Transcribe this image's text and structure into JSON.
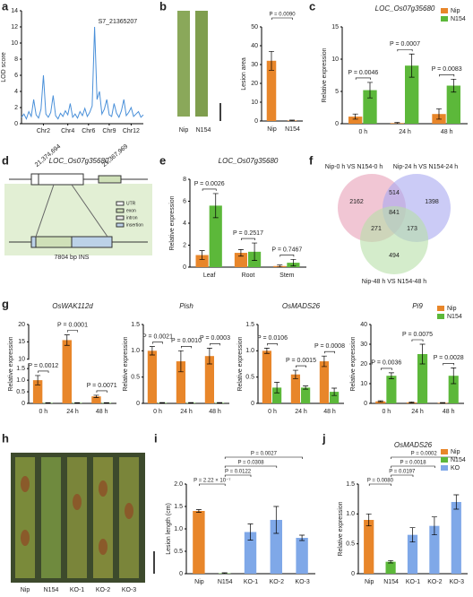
{
  "panels": [
    "a",
    "b",
    "c",
    "d",
    "e",
    "f",
    "g",
    "h",
    "i",
    "j"
  ],
  "photo_b_labels": [
    "Nip",
    "N154"
  ],
  "photo_h_labels": [
    "Nip",
    "N154",
    "KO-1",
    "KO-2",
    "KO-3"
  ],
  "gene_diagram": {
    "title": "LOC_Os07g35680",
    "start": "21,374,694",
    "end": "21,367,969",
    "insertion": "7804 bp INS",
    "legend": [
      "UTR",
      "exon",
      "intron",
      "insertion"
    ]
  },
  "venn": {
    "sets": [
      "Nip-0 h VS N154-0 h",
      "Nip-24 h VS N154-24 h",
      "Nip-48 h VS N154-48 h"
    ],
    "only_a": "2162",
    "ab": "514",
    "only_b": "1398",
    "abc": "841",
    "ac": "271",
    "bc": "173",
    "only_c": "494"
  },
  "chart_data": [
    {
      "type": "line",
      "ylabel": "LOD score",
      "peak_label": "S7_21365207",
      "color": "#4a90d9",
      "x": [
        0,
        2,
        4,
        6,
        8,
        10,
        12,
        14,
        16,
        18,
        20,
        22,
        24,
        26,
        28,
        30,
        32,
        34,
        36,
        38,
        40,
        42,
        44,
        46,
        48,
        50,
        52,
        54,
        56,
        58,
        60,
        62,
        64,
        66,
        68,
        70,
        72,
        74,
        76,
        78,
        80,
        82,
        84,
        86,
        88,
        90,
        92,
        94,
        96,
        98,
        100
      ],
      "values": [
        0.8,
        1.2,
        0.6,
        1.5,
        0.9,
        3.0,
        1.1,
        0.7,
        1.8,
        6.0,
        1.2,
        0.8,
        1.4,
        3.5,
        1.0,
        0.6,
        1.3,
        0.9,
        1.6,
        1.1,
        2.5,
        0.8,
        1.2,
        0.7,
        1.5,
        1.0,
        1.9,
        0.9,
        1.4,
        2.2,
        12.0,
        3.0,
        4.0,
        1.2,
        1.8,
        3.0,
        1.1,
        0.9,
        2.5,
        1.3,
        0.8,
        1.6,
        3.0,
        1.0,
        1.4,
        2.0,
        0.9,
        1.2,
        1.5,
        0.8,
        1.1
      ],
      "xlim": [
        0,
        100
      ],
      "xticks": [
        {
          "value": 18,
          "label": "Chr2"
        },
        {
          "value": 38,
          "label": "Chr4"
        },
        {
          "value": 55,
          "label": "Chr6"
        },
        {
          "value": 72,
          "label": "Chr9"
        },
        {
          "value": 90,
          "label": "Chr12"
        }
      ],
      "ylim": [
        0,
        14
      ],
      "yticks": [
        0,
        2,
        4,
        6,
        8,
        10,
        12,
        14
      ]
    },
    {
      "type": "bar",
      "ylabel": "Lesion area",
      "categories": [
        "Nip",
        "N154"
      ],
      "series": [
        {
          "color": "#e8862a",
          "values": [
            32,
            0.3
          ],
          "errors": [
            5,
            0.2
          ]
        }
      ],
      "ylim": [
        0,
        50
      ],
      "yticks": [
        0,
        10,
        20,
        30,
        40,
        50
      ],
      "comparisons": [
        {
          "label": "P = 0.0090",
          "between": [
            0,
            1
          ]
        }
      ]
    },
    {
      "type": "bar",
      "title": "LOC_Os07g35680",
      "ylabel": "Relative expression",
      "categories": [
        "0 h",
        "24 h",
        "48 h"
      ],
      "series": [
        {
          "name": "Nip",
          "color": "#e8862a",
          "values": [
            1.1,
            0.1,
            1.5
          ],
          "errors": [
            0.4,
            0.1,
            0.8
          ]
        },
        {
          "name": "N154",
          "color": "#5cb83a",
          "values": [
            5.2,
            9.0,
            5.9
          ],
          "errors": [
            1.2,
            1.8,
            1.0
          ]
        }
      ],
      "ylim": [
        0,
        15
      ],
      "yticks": [
        0,
        5,
        10,
        15
      ],
      "legend": "upper right",
      "annotations": [
        "P = 0.0046",
        "P = 0.0007",
        "P = 0.0083"
      ]
    },
    {
      "type": "bar",
      "title": "LOC_Os07g35680",
      "ylabel": "Relative expression",
      "categories": [
        "Leaf",
        "Root",
        "Stem"
      ],
      "series": [
        {
          "name": "Nip",
          "color": "#e8862a",
          "values": [
            1.1,
            1.3,
            0.1
          ],
          "errors": [
            0.4,
            0.3,
            0.1
          ]
        },
        {
          "name": "N154",
          "color": "#5cb83a",
          "values": [
            5.6,
            1.4,
            0.4
          ],
          "errors": [
            1.1,
            0.8,
            0.3
          ]
        }
      ],
      "ylim": [
        0,
        8
      ],
      "yticks": [
        0,
        2,
        4,
        6,
        8
      ],
      "annotations": [
        "P = 0.0026",
        "P = 0.2517",
        "P = 0.7467"
      ]
    },
    {
      "type": "bar",
      "title": "OsWAK112d",
      "ylabel": "Relative expression",
      "categories": [
        "0 h",
        "24 h",
        "48 h"
      ],
      "series": [
        {
          "name": "Nip",
          "color": "#e8862a",
          "values": [
            1.0,
            15.5,
            0.3
          ],
          "errors": [
            0.2,
            1.5,
            0.05
          ]
        },
        {
          "name": "N154",
          "color": "#5cb83a",
          "values": [
            0.02,
            0.02,
            0.02
          ],
          "errors": [
            0.01,
            0.01,
            0.01
          ]
        }
      ],
      "ylim": [
        0,
        20
      ],
      "ybreak": [
        1.7,
        10
      ],
      "yticks": [
        0,
        {
          "value": 0.5,
          "label": "0.5"
        },
        {
          "value": 1,
          "label": "1.0"
        },
        {
          "value": 1.5,
          "label": "1.5"
        },
        10,
        15,
        20
      ],
      "annotations": [
        "P = 0.0012",
        "P = 0.0001",
        "P = 0.0071"
      ]
    },
    {
      "type": "bar",
      "title": "Pish",
      "ylabel": "Relative expression",
      "categories": [
        "0 h",
        "24 h",
        "48 h"
      ],
      "series": [
        {
          "name": "Nip",
          "color": "#e8862a",
          "values": [
            1.0,
            0.8,
            0.9
          ],
          "errors": [
            0.08,
            0.2,
            0.15
          ]
        },
        {
          "name": "N154",
          "color": "#5cb83a",
          "values": [
            0.01,
            0.01,
            0.01
          ],
          "errors": [
            0.005,
            0.005,
            0.005
          ]
        }
      ],
      "ylim": [
        0,
        1.5
      ],
      "yticks": [
        0,
        {
          "value": 0.5,
          "label": "0.5"
        },
        {
          "value": 1,
          "label": "1.0"
        },
        {
          "value": 1.5,
          "label": "1.5"
        }
      ],
      "annotations": [
        "P = 0.0021",
        "P = 0.0010",
        "P = 0.0003"
      ]
    },
    {
      "type": "bar",
      "title": "OsMADS26",
      "ylabel": "Relative expression",
      "categories": [
        "0 h",
        "24 h",
        "48 h"
      ],
      "series": [
        {
          "name": "Nip",
          "color": "#e8862a",
          "values": [
            1.0,
            0.55,
            0.8
          ],
          "errors": [
            0.05,
            0.08,
            0.1
          ]
        },
        {
          "name": "N154",
          "color": "#5cb83a",
          "values": [
            0.3,
            0.3,
            0.22
          ],
          "errors": [
            0.1,
            0.03,
            0.07
          ]
        }
      ],
      "ylim": [
        0,
        1.5
      ],
      "yticks": [
        0,
        {
          "value": 0.5,
          "label": "0.5"
        },
        {
          "value": 1,
          "label": "1.0"
        },
        {
          "value": 1.5,
          "label": "1.5"
        }
      ],
      "annotations": [
        "P = 0.0106",
        "P = 0.0015",
        "P = 0.0008"
      ]
    },
    {
      "type": "bar",
      "title": "Pi9",
      "ylabel": "Relative expression",
      "categories": [
        "0 h",
        "24 h",
        "48 h"
      ],
      "series": [
        {
          "name": "Nip",
          "color": "#e8862a",
          "values": [
            1.0,
            0.5,
            0.3
          ],
          "errors": [
            0.3,
            0.2,
            0.1
          ]
        },
        {
          "name": "N154",
          "color": "#5cb83a",
          "values": [
            14,
            25,
            14
          ],
          "errors": [
            1.5,
            5,
            4
          ]
        }
      ],
      "ylim": [
        0,
        40
      ],
      "yticks": [
        0,
        10,
        20,
        30,
        40
      ],
      "legend": "upper right",
      "annotations": [
        "P = 0.0036",
        "P = 0.0075",
        "P = 0.0028"
      ]
    },
    {
      "type": "bar",
      "ylabel": "Lesion length (cm)",
      "categories": [
        "Nip",
        "N154",
        "KO-1",
        "KO-2",
        "KO-3"
      ],
      "series": [
        {
          "name": "Nip",
          "color": "#e8862a",
          "values": [
            1.4,
            null,
            null,
            null,
            null
          ],
          "errors": [
            0.03,
            null,
            null,
            null,
            null
          ]
        },
        {
          "name": "N154",
          "color": "#5cb83a",
          "values": [
            null,
            0.01,
            null,
            null,
            null
          ],
          "errors": [
            null,
            0.01,
            null,
            null,
            null
          ]
        },
        {
          "name": "KO",
          "color": "#7fa8e8",
          "values": [
            null,
            null,
            0.93,
            1.2,
            0.8
          ],
          "errors": [
            null,
            null,
            0.18,
            0.3,
            0.06
          ]
        }
      ],
      "ylim": [
        0,
        2.0
      ],
      "yticks": [
        0,
        {
          "value": 0.5,
          "label": "0.5"
        },
        {
          "value": 1,
          "label": "1.0"
        },
        {
          "value": 1.5,
          "label": "1.5"
        },
        {
          "value": 2,
          "label": "2.0"
        }
      ],
      "comparisons": [
        {
          "label": "P = 0.0027",
          "between": [
            1,
            4
          ]
        },
        {
          "label": "P = 0.0308",
          "between": [
            1,
            3
          ]
        },
        {
          "label": "P = 0.0122",
          "between": [
            1,
            2
          ]
        },
        {
          "label": "P = 2.22 × 10⁻⁷",
          "between": [
            0,
            1
          ]
        }
      ]
    },
    {
      "type": "bar",
      "title": "OsMADS26",
      "ylabel": "Relative expression",
      "categories": [
        "Nip",
        "N154",
        "KO-1",
        "KO-2",
        "KO-3"
      ],
      "series": [
        {
          "name": "Nip",
          "color": "#e8862a",
          "values": [
            0.9,
            null,
            null,
            null,
            null
          ],
          "errors": [
            0.1,
            null,
            null,
            null,
            null
          ]
        },
        {
          "name": "N154",
          "color": "#5cb83a",
          "values": [
            null,
            0.2,
            null,
            null,
            null
          ],
          "errors": [
            null,
            0.02,
            null,
            null,
            null
          ]
        },
        {
          "name": "KO",
          "color": "#7fa8e8",
          "values": [
            null,
            null,
            0.65,
            0.8,
            1.2
          ],
          "errors": [
            null,
            null,
            0.12,
            0.15,
            0.12
          ]
        }
      ],
      "ylim": [
        0,
        1.5
      ],
      "yticks": [
        0,
        {
          "value": 0.5,
          "label": "0.5"
        },
        {
          "value": 1,
          "label": "1.0"
        },
        {
          "value": 1.5,
          "label": "1.5"
        }
      ],
      "legend": "upper right",
      "comparisons": [
        {
          "label": "P = 0.0002",
          "between": [
            1,
            4
          ]
        },
        {
          "label": "P = 0.0018",
          "between": [
            1,
            3
          ]
        },
        {
          "label": "P = 0.0197",
          "between": [
            1,
            2
          ]
        },
        {
          "label": "P = 0.0080",
          "between": [
            0,
            1
          ]
        }
      ]
    }
  ]
}
